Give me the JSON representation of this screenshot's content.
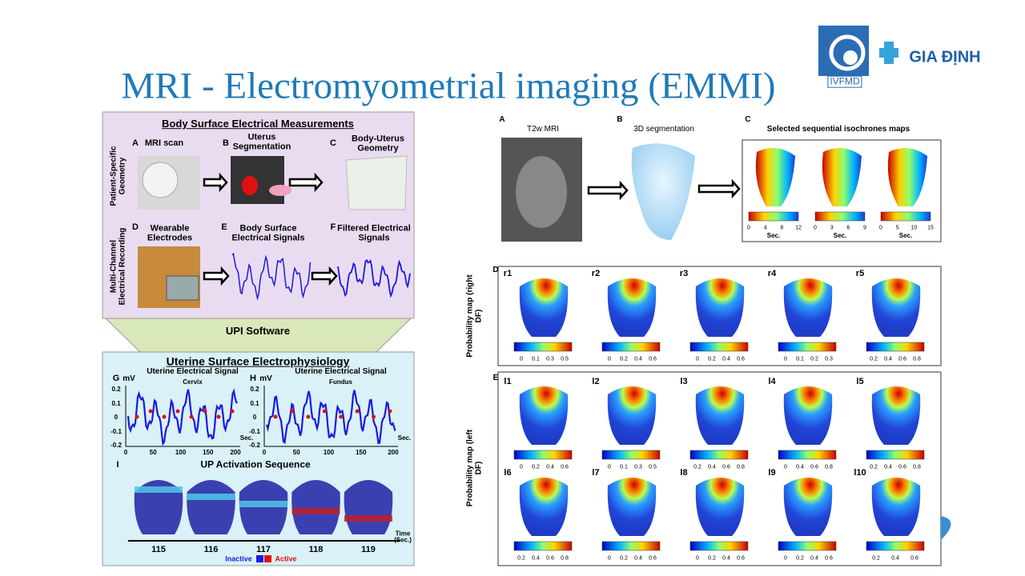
{
  "header": {
    "title": "MRI - Electromyometrial imaging (EMMI)"
  },
  "logos": {
    "left": "IVFMD",
    "right": "GIA ĐỊNH"
  },
  "left_figure": {
    "top": {
      "title": "Body Surface Electrical Measurements",
      "row_labels": [
        "Patient-Specific Geometry",
        "Multi-Channel Electrical Recording"
      ],
      "panels": [
        {
          "letter": "A",
          "label": "MRI scan"
        },
        {
          "letter": "B",
          "label": "Uterus Segmentation"
        },
        {
          "letter": "C",
          "label": "Body-Uterus Geometry"
        },
        {
          "letter": "D",
          "label": "Wearable Electrodes"
        },
        {
          "letter": "E",
          "label": "Body Surface Electrical Signals"
        },
        {
          "letter": "F",
          "label": "Filtered Electrical Signals"
        }
      ]
    },
    "software": "UPI Software",
    "bottom": {
      "title": "Uterine Surface Electrophysiology",
      "signals": [
        {
          "letter": "G",
          "unit": "mV",
          "title": "Uterine Electrical Signal",
          "site": "Cervix",
          "yticks": [
            "0.2",
            "0.1",
            "0",
            "-0.1",
            "-0.2"
          ],
          "xticks": [
            "0",
            "50",
            "100",
            "150",
            "200"
          ],
          "x_unit": "Sec."
        },
        {
          "letter": "H",
          "unit": "mV",
          "title": "Uterine Electrical Signal",
          "site": "Fundus",
          "yticks": [
            "0.2",
            "0.1",
            "0",
            "-0.1",
            "-0.2"
          ],
          "xticks": [
            "0",
            "50",
            "100",
            "150",
            "200"
          ],
          "x_unit": "Sec."
        }
      ],
      "activation": {
        "letter": "I",
        "title": "UP Activation Sequence",
        "times": [
          "115",
          "116",
          "117",
          "118",
          "119"
        ],
        "time_label": "Time (Sec.)",
        "legend": [
          "Inactive",
          "Active"
        ]
      }
    }
  },
  "right_figure": {
    "panels": [
      {
        "letter": "A",
        "label": "T2w MRI"
      },
      {
        "letter": "B",
        "label": "3D segmentation"
      },
      {
        "letter": "C",
        "label": "Selected sequential isochrones maps"
      }
    ],
    "isochrones": [
      {
        "ticks": [
          "0",
          "4",
          "8",
          "12"
        ],
        "unit": "Sec."
      },
      {
        "ticks": [
          "0",
          "3",
          "6",
          "9"
        ],
        "unit": "Sec."
      },
      {
        "ticks": [
          "0",
          "5",
          "10",
          "15"
        ],
        "unit": "Sec."
      }
    ],
    "right_df": {
      "letter": "D",
      "axis_label": "Probability map (right DF)",
      "maps": [
        {
          "label": "r1",
          "ticks": [
            "0",
            "0.1",
            "0.3",
            "0.5"
          ]
        },
        {
          "label": "r2",
          "ticks": [
            "0",
            "0.2",
            "0.4",
            "0.6"
          ]
        },
        {
          "label": "r3",
          "ticks": [
            "0",
            "0.2",
            "0.4",
            "0.6"
          ]
        },
        {
          "label": "r4",
          "ticks": [
            "0",
            "0.1",
            "0.2",
            "0.3"
          ]
        },
        {
          "label": "r5",
          "ticks": [
            "0.2",
            "0.4",
            "0.6",
            "0.8"
          ]
        }
      ]
    },
    "left_df": {
      "letter": "E",
      "axis_label": "Probability map (left DF)",
      "maps": [
        {
          "label": "l1",
          "ticks": [
            "0",
            "0.2",
            "0.4",
            "0.6"
          ]
        },
        {
          "label": "l2",
          "ticks": [
            "0",
            "0.1",
            "0.3",
            "0.5"
          ]
        },
        {
          "label": "l3",
          "ticks": [
            "0.2",
            "0.4",
            "0.6",
            "0.8"
          ]
        },
        {
          "label": "l4",
          "ticks": [
            "0",
            "0.4",
            "0.6",
            "0.8"
          ]
        },
        {
          "label": "l5",
          "ticks": [
            "0.2",
            "0.4",
            "0.6",
            "0.8"
          ]
        },
        {
          "label": "l6",
          "ticks": [
            "0.2",
            "0.4",
            "0.6",
            "0.8"
          ]
        },
        {
          "label": "l7",
          "ticks": [
            "0",
            "0.2",
            "0.4",
            "0.6"
          ]
        },
        {
          "label": "l8",
          "ticks": [
            "0",
            "0.2",
            "0.4",
            "0.6"
          ]
        },
        {
          "label": "l9",
          "ticks": [
            "0",
            "0.2",
            "0.4",
            "0.6"
          ]
        },
        {
          "label": "l10",
          "ticks": [
            "0.2",
            "0.4",
            "0.6"
          ]
        }
      ]
    }
  }
}
